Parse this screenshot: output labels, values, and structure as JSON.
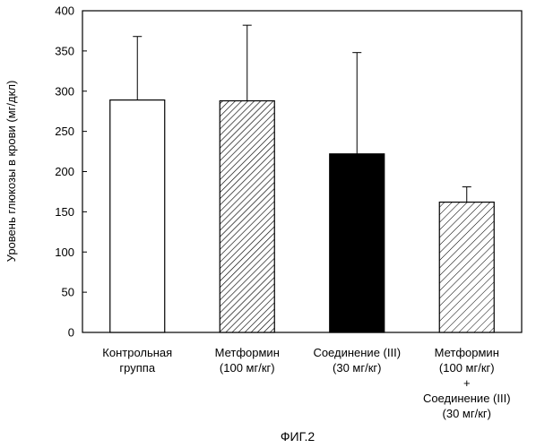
{
  "chart_data": {
    "type": "bar",
    "ylabel": "Уровень глюкозы в крови (мг/дкл)",
    "ylim": [
      0,
      400
    ],
    "yticks": [
      0,
      50,
      100,
      150,
      200,
      250,
      300,
      350,
      400
    ],
    "grid": false,
    "categories": [
      {
        "lines": [
          "Контрольная",
          "группа"
        ]
      },
      {
        "lines": [
          "Метформин",
          "(100 мг/кг)"
        ]
      },
      {
        "lines": [
          "Соединение (III)",
          "(30 мг/кг)"
        ]
      },
      {
        "lines": [
          "Метформин",
          "(100 мг/кг)",
          "+",
          "Соединение (III)",
          "(30 мг/кг)"
        ]
      }
    ],
    "values": [
      289,
      288,
      222,
      162
    ],
    "error_upper": [
      368,
      382,
      348,
      181
    ],
    "fills": [
      "white",
      "hatch-dense",
      "black",
      "hatch-sparse"
    ]
  },
  "caption": "ФИГ.2",
  "colors": {
    "axis": "#000000",
    "bar_stroke": "#000000",
    "solid": "#000000"
  }
}
